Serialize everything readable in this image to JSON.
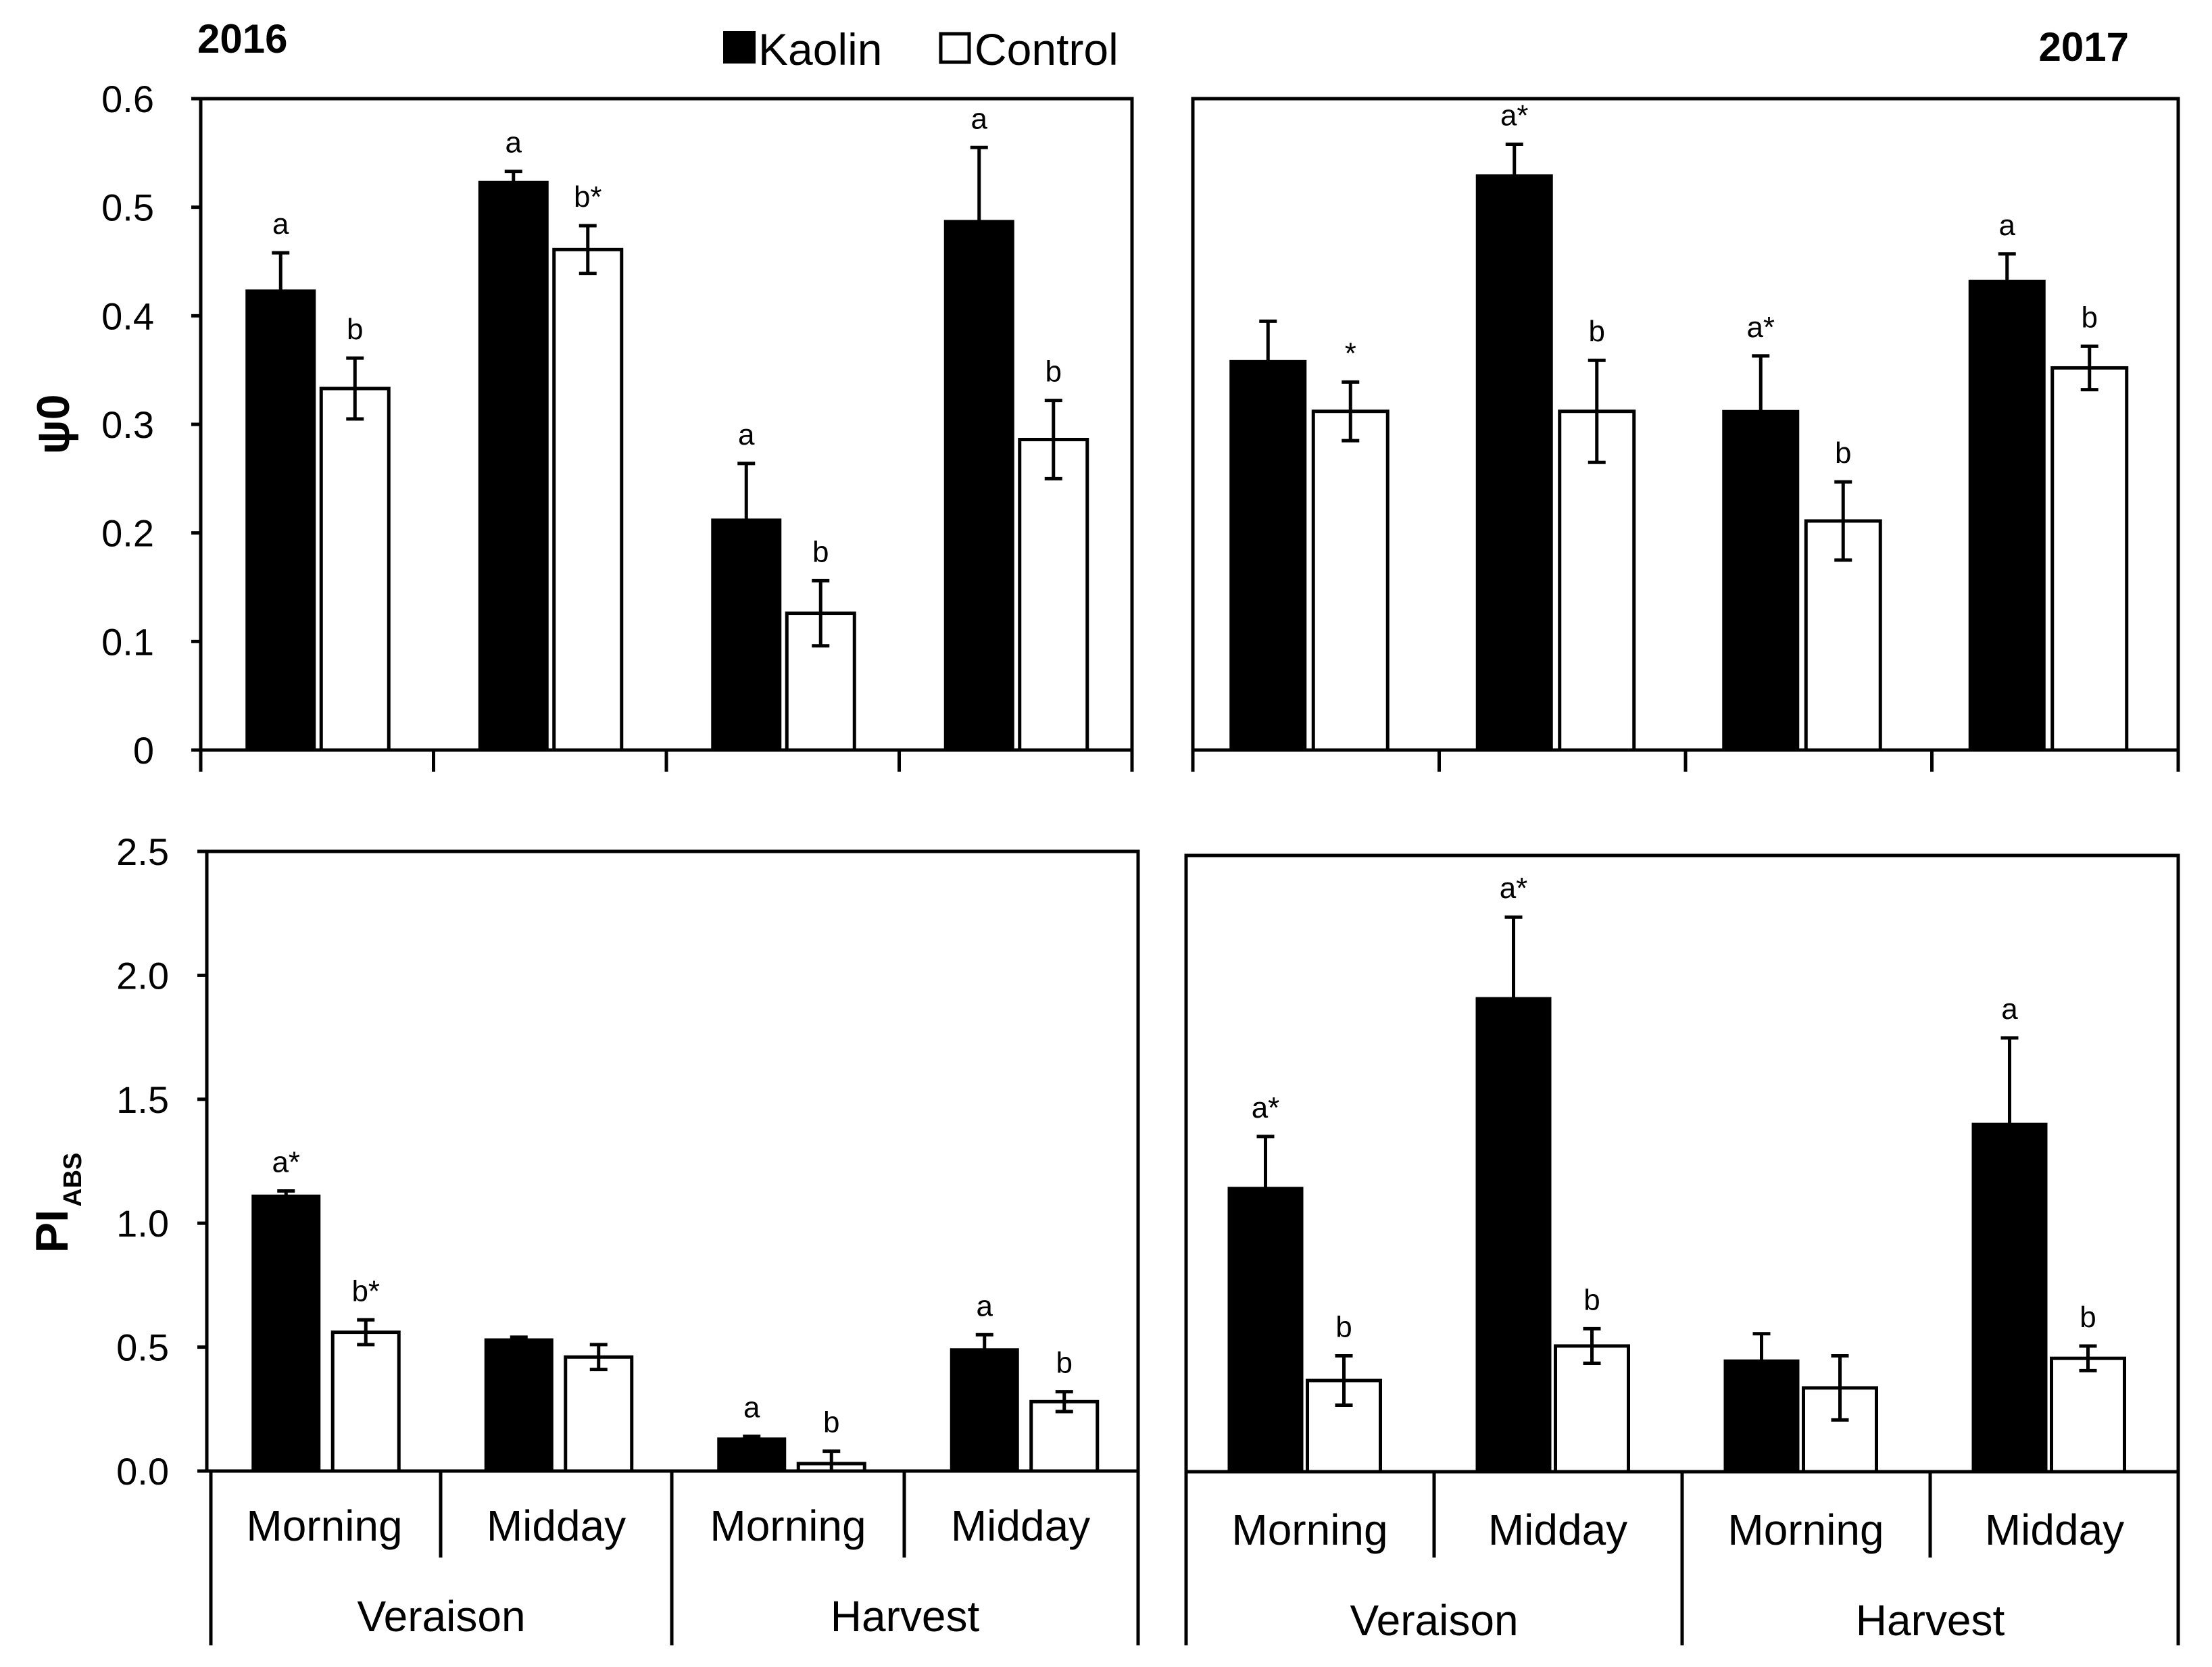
{
  "legend": [
    {
      "name": "Kaolin",
      "color": "#000000"
    },
    {
      "name": "Control",
      "color": "#ffffff"
    }
  ],
  "chart_data": [
    {
      "type": "bar",
      "year": "2016",
      "ylabel": "ψ0",
      "ylim": [
        0,
        0.6
      ],
      "yticks": [
        "0",
        "0.1",
        "0.2",
        "0.3",
        "0.4",
        "0.5",
        "0.6"
      ],
      "categories": [
        "Veraison Morning",
        "Veraison Midday",
        "Harvest Morning",
        "Harvest Midday"
      ],
      "series": [
        {
          "name": "Kaolin",
          "values": [
            0.423,
            0.523,
            0.212,
            0.487
          ],
          "errors": [
            0.035,
            0.01,
            0.052,
            0.068
          ],
          "labels": [
            "a",
            "a",
            "a",
            "a"
          ]
        },
        {
          "name": "Control",
          "values": [
            0.333,
            0.461,
            0.126,
            0.286
          ],
          "errors": [
            0.028,
            0.022,
            0.03,
            0.036
          ],
          "labels": [
            "b",
            "b*",
            "b",
            "b"
          ]
        }
      ]
    },
    {
      "type": "bar",
      "year": "2017",
      "ylabel": "ψ0",
      "ylim": [
        0,
        0.6
      ],
      "categories": [
        "Veraison Morning",
        "Veraison Midday",
        "Harvest Morning",
        "Harvest Midday"
      ],
      "series": [
        {
          "name": "Kaolin",
          "values": [
            0.358,
            0.529,
            0.312,
            0.432
          ],
          "errors": [
            0.037,
            0.029,
            0.051,
            0.025
          ],
          "labels": [
            "",
            "a*",
            "a*",
            "a"
          ]
        },
        {
          "name": "Control",
          "values": [
            0.312,
            0.312,
            0.211,
            0.352
          ],
          "errors": [
            0.027,
            0.047,
            0.036,
            0.02
          ],
          "labels": [
            "*",
            "b",
            "b",
            "b"
          ]
        }
      ]
    },
    {
      "type": "bar",
      "year": "2016",
      "ylabel": "PI",
      "ylabel_sub": "ABS",
      "ylim": [
        0,
        2.5
      ],
      "yticks": [
        "0.0",
        "0.5",
        "1.0",
        "1.5",
        "2.0",
        "2.5"
      ],
      "categories": [
        "Veraison Morning",
        "Veraison Midday",
        "Harvest Morning",
        "Harvest Midday"
      ],
      "series": [
        {
          "name": "Kaolin",
          "values": [
            1.11,
            0.53,
            0.13,
            0.49
          ],
          "errors": [
            0.02,
            0.01,
            0.01,
            0.06
          ],
          "labels": [
            "a*",
            "",
            "a",
            "a"
          ]
        },
        {
          "name": "Control",
          "values": [
            0.56,
            0.46,
            0.03,
            0.28
          ],
          "errors": [
            0.05,
            0.05,
            0.05,
            0.04
          ],
          "labels": [
            "b*",
            "",
            "b",
            "b"
          ]
        }
      ]
    },
    {
      "type": "bar",
      "year": "2017",
      "ylabel": "PI",
      "ylabel_sub": "ABS",
      "ylim": [
        0,
        2.5
      ],
      "categories": [
        "Veraison Morning",
        "Veraison Midday",
        "Harvest Morning",
        "Harvest Midday"
      ],
      "series": [
        {
          "name": "Kaolin",
          "values": [
            1.15,
            1.92,
            0.45,
            1.41
          ],
          "errors": [
            0.21,
            0.33,
            0.11,
            0.35
          ],
          "labels": [
            "a*",
            "a*",
            "",
            "a"
          ]
        },
        {
          "name": "Control",
          "values": [
            0.37,
            0.51,
            0.34,
            0.46
          ],
          "errors": [
            0.1,
            0.07,
            0.13,
            0.05
          ],
          "labels": [
            "b",
            "b",
            "",
            "b"
          ]
        }
      ]
    }
  ],
  "x_axis": {
    "times": [
      "Morning",
      "Midday",
      "Morning",
      "Midday"
    ],
    "stages": [
      "Veraison",
      "Harvest"
    ]
  }
}
